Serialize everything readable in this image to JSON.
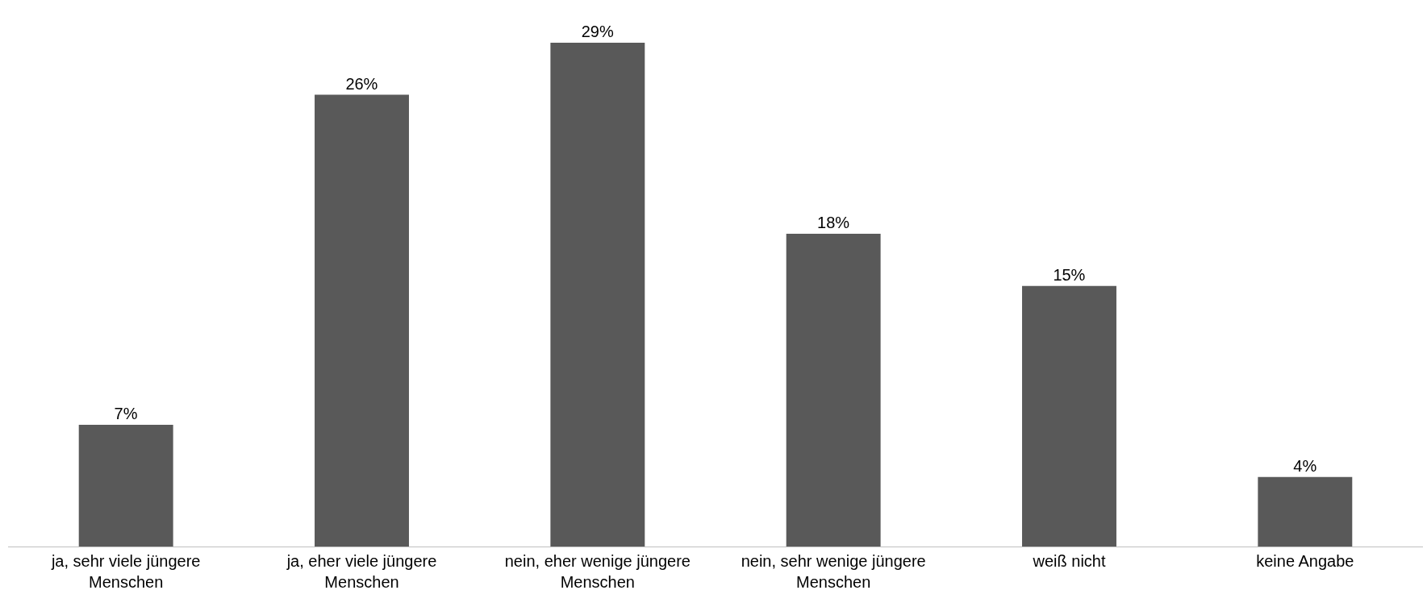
{
  "chart_data": {
    "type": "bar",
    "categories": [
      "ja, sehr viele jüngere Menschen",
      "ja, eher viele jüngere Menschen",
      "nein, eher wenige jüngere Menschen",
      "nein, sehr wenige jüngere Menschen",
      "weiß nicht",
      "keine Angabe"
    ],
    "values": [
      7,
      26,
      29,
      18,
      15,
      4
    ],
    "value_labels": [
      "7%",
      "26%",
      "29%",
      "18%",
      "15%",
      "4%"
    ],
    "color": "#595959"
  }
}
